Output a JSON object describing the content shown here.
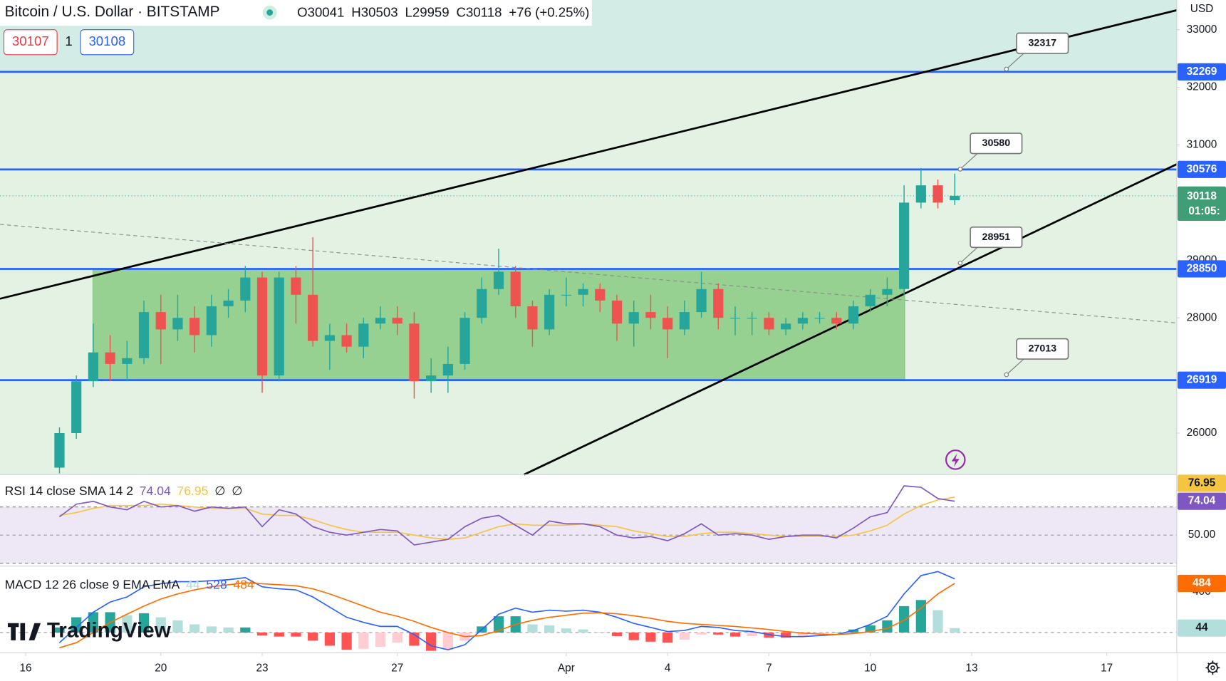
{
  "chart_data": {
    "type": "candlestick",
    "title": "Bitcoin / U.S. Dollar · BITSTAMP",
    "legend": [
      "O30041",
      "H30503",
      "L29959",
      "C30118",
      "+76 (+0.25%)"
    ],
    "bid": "30107",
    "spread": "1",
    "ask": "30108",
    "currency": "USD",
    "watermark": "TradingView",
    "x": [
      17,
      17.5,
      18,
      18.5,
      19,
      19.5,
      20,
      20.5,
      21,
      21.5,
      22,
      22.5,
      23,
      23.5,
      24,
      24.5,
      25,
      25.5,
      26,
      26.5,
      27,
      27.5,
      28,
      28.5,
      29,
      29.5,
      30,
      30.5,
      31,
      31.5,
      32,
      32.5,
      33,
      33.5,
      34,
      34.5,
      35,
      35.5,
      36,
      36.5,
      37,
      37.5,
      38,
      38.5,
      39,
      39.5,
      40,
      40.5,
      41,
      41.5,
      42,
      42.5,
      43,
      43.5
    ],
    "open": [
      25400,
      26000,
      26900,
      27400,
      27200,
      27300,
      28100,
      27800,
      28000,
      27700,
      28200,
      28300,
      28700,
      27000,
      28700,
      28400,
      27600,
      27700,
      27500,
      27900,
      28000,
      27900,
      26900,
      27000,
      27200,
      28000,
      28500,
      28800,
      28200,
      27800,
      28400,
      28400,
      28500,
      28300,
      27900,
      28100,
      28000,
      27800,
      28100,
      28500,
      28000,
      28000,
      28000,
      27800,
      27900,
      28000,
      28000,
      27900,
      28200,
      28400,
      28500,
      30000,
      30300,
      30041
    ],
    "high": [
      26100,
      27000,
      27900,
      27700,
      27600,
      28300,
      28400,
      28400,
      28200,
      28400,
      28500,
      28900,
      28800,
      28800,
      28900,
      29400,
      27900,
      27900,
      28000,
      28200,
      28200,
      28100,
      27300,
      27500,
      28100,
      28700,
      29200,
      28900,
      28300,
      28500,
      28700,
      28600,
      28600,
      28400,
      28300,
      28400,
      28200,
      28300,
      28800,
      28600,
      28200,
      28100,
      28100,
      28000,
      28100,
      28100,
      28100,
      28300,
      28500,
      28700,
      30300,
      30600,
      30400,
      30503
    ],
    "low": [
      25300,
      25900,
      26800,
      26900,
      26900,
      27200,
      27200,
      27600,
      27400,
      27500,
      28000,
      28100,
      26700,
      26900,
      27900,
      27500,
      27100,
      27400,
      27300,
      27800,
      27700,
      26600,
      26700,
      26700,
      27100,
      27900,
      28400,
      28000,
      27500,
      27700,
      28200,
      28200,
      28100,
      27600,
      27500,
      27800,
      27300,
      27700,
      28000,
      27800,
      27700,
      27700,
      27700,
      27700,
      27800,
      27900,
      27800,
      27800,
      28100,
      28200,
      28400,
      29900,
      29900,
      29959
    ],
    "close": [
      26000,
      26900,
      27400,
      27200,
      27300,
      28100,
      27800,
      28000,
      27700,
      28200,
      28300,
      28700,
      27000,
      28700,
      28400,
      27600,
      27700,
      27500,
      27900,
      28000,
      27900,
      26900,
      27000,
      27200,
      28000,
      28500,
      28800,
      28200,
      27800,
      28400,
      28400,
      28500,
      28300,
      27900,
      28100,
      28000,
      27800,
      28100,
      28500,
      28000,
      28000,
      28000,
      27800,
      27900,
      28000,
      28000,
      27900,
      28200,
      28400,
      28500,
      30000,
      30300,
      30000,
      30118
    ],
    "up_color": "#26a69a",
    "down_color": "#ef5350",
    "xlim": [
      15.24,
      50.07
    ],
    "xticks": [
      16,
      20,
      23,
      27,
      {
        "value": 32,
        "label": "Apr"
      },
      {
        "value": 35,
        "label": "4"
      },
      {
        "value": 38,
        "label": "7"
      },
      {
        "value": 41,
        "label": "10"
      },
      {
        "value": 44,
        "label": "13"
      },
      {
        "value": 48,
        "label": "17"
      }
    ],
    "ylim": [
      25280,
      33516
    ],
    "yticks": [
      26000,
      28000,
      29000,
      31000,
      32000,
      33000
    ],
    "levels": [
      32269,
      30576,
      28850,
      26919
    ],
    "level_color": "#2962ff",
    "callouts": [
      {
        "x": 45.03,
        "value": 32317
      },
      {
        "x": 43.66,
        "value": 30580
      },
      {
        "x": 43.66,
        "value": 28951
      },
      {
        "x": 45.03,
        "value": 27013
      }
    ],
    "countdown": "01:05:",
    "trendlines": [
      {
        "x": [
          15.24,
          50.07
        ],
        "y": [
          28332,
          33339
        ],
        "color": "#000000"
      },
      {
        "x": [
          30.75,
          50.07
        ],
        "y": [
          25280,
          30666
        ],
        "color": "#000000"
      },
      {
        "x": [
          15.24,
          50.07
        ],
        "y": [
          29622,
          27912
        ],
        "color": "#8a8a8a",
        "dashed": true
      }
    ],
    "zone": {
      "x": [
        17.99,
        42.02
      ],
      "y": [
        26919,
        28850
      ],
      "color": "#7cc576"
    },
    "rsi": {
      "title": "RSI 14 close SMA 14 2",
      "extras": [
        "∅",
        "∅"
      ],
      "ylim": [
        28,
        93
      ],
      "yticks": [
        {
          "value": 50,
          "label": "50.00"
        }
      ],
      "band": [
        30,
        70
      ],
      "series": [
        {
          "color": "#7e57c2",
          "values": [
            63,
            72,
            74,
            70,
            68,
            74,
            70,
            71,
            67,
            70,
            69,
            70,
            56,
            68,
            65,
            56,
            52,
            50,
            52,
            54,
            53,
            43,
            45,
            47,
            56,
            62,
            64,
            57,
            50,
            60,
            58,
            58,
            56,
            50,
            48,
            49,
            46,
            51,
            58,
            50,
            51,
            50,
            47,
            49,
            50,
            50,
            48,
            55,
            63,
            66,
            85,
            84,
            76,
            74.04
          ]
        },
        {
          "color": "#f5c542",
          "values": [
            64,
            66,
            69,
            71,
            71,
            71,
            72,
            71,
            70,
            69,
            69,
            69,
            65,
            64,
            64,
            61,
            57,
            54,
            52,
            52,
            52,
            50,
            48,
            47,
            48,
            52,
            56,
            58,
            57,
            57,
            57,
            58,
            57,
            56,
            53,
            51,
            49,
            49,
            51,
            52,
            52,
            51,
            50,
            49,
            49,
            49,
            49,
            50,
            53,
            57,
            65,
            71,
            75,
            76.95
          ]
        }
      ]
    },
    "macd": {
      "title": "MACD 12 26 close 9 EMA EMA",
      "ylim": [
        -200,
        654
      ],
      "yticks": [
        400
      ],
      "histogram": {
        "color": "#26a69a",
        "values": [
          50,
          150,
          200,
          200,
          170,
          190,
          150,
          120,
          80,
          60,
          50,
          50,
          -30,
          -40,
          -40,
          -80,
          -130,
          -170,
          -160,
          -140,
          -100,
          -130,
          -180,
          -170,
          -80,
          60,
          160,
          160,
          80,
          70,
          40,
          30,
          5,
          -35,
          -75,
          -90,
          -100,
          -70,
          -20,
          -20,
          -40,
          -35,
          -50,
          -50,
          -35,
          -15,
          0,
          30,
          70,
          120,
          260,
          320,
          220,
          44
        ]
      },
      "series": [
        {
          "color": "#2962ff",
          "values": [
            -100,
            50,
            200,
            300,
            350,
            450,
            480,
            500,
            500,
            510,
            520,
            540,
            450,
            430,
            420,
            350,
            250,
            150,
            100,
            60,
            60,
            -20,
            -130,
            -170,
            -120,
            30,
            180,
            240,
            200,
            220,
            210,
            220,
            200,
            150,
            90,
            50,
            10,
            20,
            60,
            50,
            20,
            10,
            -20,
            -40,
            -40,
            -30,
            -20,
            20,
            80,
            160,
            380,
            560,
            600,
            528
          ]
        },
        {
          "color": "#ff6d00",
          "values": [
            -150,
            -100,
            0,
            100,
            180,
            260,
            330,
            380,
            420,
            450,
            470,
            490,
            480,
            470,
            460,
            430,
            380,
            320,
            260,
            200,
            160,
            110,
            50,
            0,
            -40,
            -30,
            20,
            80,
            120,
            150,
            170,
            190,
            195,
            185,
            165,
            140,
            110,
            90,
            80,
            70,
            60,
            45,
            30,
            10,
            -5,
            -15,
            -20,
            -10,
            10,
            40,
            120,
            240,
            380,
            484
          ]
        }
      ]
    }
  }
}
